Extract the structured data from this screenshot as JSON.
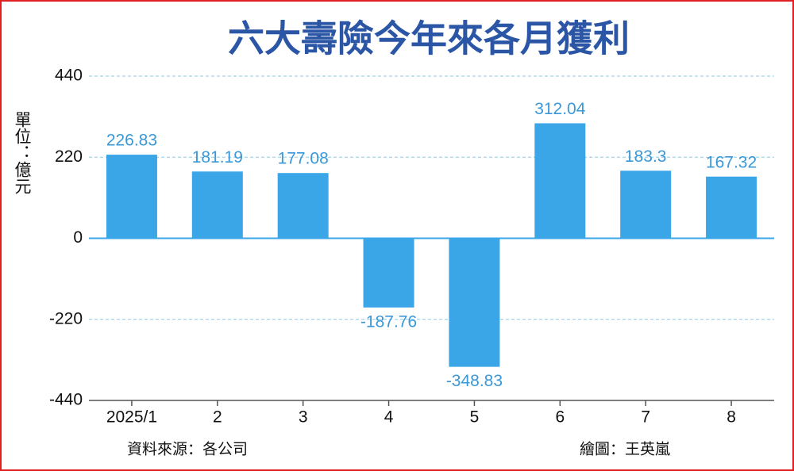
{
  "chart_data": {
    "type": "bar",
    "title": "六大壽險今年來各月獲利",
    "y_axis_label": "單位：億元",
    "categories": [
      "2025/1",
      "2",
      "3",
      "4",
      "5",
      "6",
      "7",
      "8"
    ],
    "values": [
      226.83,
      181.19,
      177.08,
      -187.76,
      -348.83,
      312.04,
      183.3,
      167.32
    ],
    "color": "#3aa6e8",
    "ylim": [
      -440,
      440
    ],
    "yticks": [
      -440,
      -220,
      0,
      220,
      440
    ],
    "grid": true,
    "source": "資料來源：各公司",
    "credit": "繪圖：王英嵐"
  }
}
